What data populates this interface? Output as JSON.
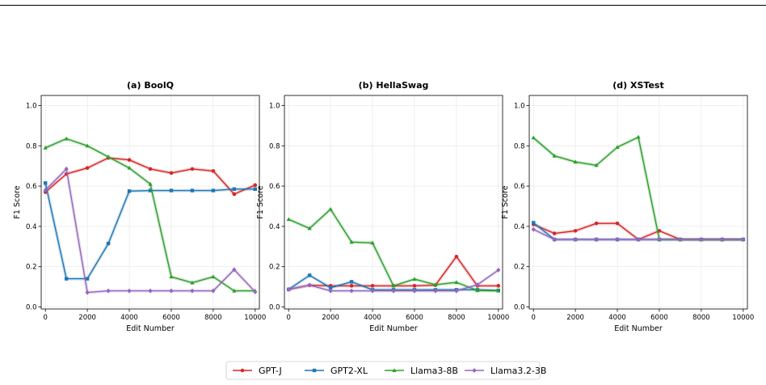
{
  "chart_data": [
    {
      "type": "line",
      "title": "(a) BoolQ",
      "xlabel": "Edit Number",
      "ylabel": "F1 Score",
      "xlim": [
        -200,
        10200
      ],
      "ylim": [
        -0.01,
        1.05
      ],
      "xticks": [
        0,
        2000,
        4000,
        6000,
        8000,
        10000
      ],
      "yticks": [
        0.0,
        0.2,
        0.4,
        0.6,
        0.8,
        1.0
      ],
      "ytick_labels": [
        "0.0",
        "0.2",
        "0.4",
        "0.6",
        "0.8",
        "1.0"
      ],
      "grid": true,
      "x": [
        0,
        1000,
        2000,
        3000,
        4000,
        5000,
        6000,
        7000,
        8000,
        9000,
        10000
      ],
      "series": [
        {
          "name": "GPT-J",
          "values": [
            0.57,
            0.66,
            0.69,
            0.74,
            0.73,
            0.685,
            0.665,
            0.685,
            0.675,
            0.56,
            0.605
          ]
        },
        {
          "name": "GPT2-XL",
          "values": [
            0.615,
            0.14,
            0.14,
            0.315,
            0.575,
            0.578,
            0.578,
            0.578,
            0.578,
            0.585,
            0.585
          ]
        },
        {
          "name": "Llama3-8B",
          "values": [
            0.79,
            0.835,
            0.8,
            0.745,
            0.69,
            0.61,
            0.15,
            0.12,
            0.15,
            0.08,
            0.08
          ]
        },
        {
          "name": "Llama3.2-3B",
          "values": [
            0.58,
            0.685,
            0.072,
            0.08,
            0.08,
            0.08,
            0.08,
            0.08,
            0.08,
            0.185,
            0.075
          ]
        }
      ]
    },
    {
      "type": "line",
      "title": "(b) HellaSwag",
      "xlabel": "Edit Number",
      "ylabel": "F1 Score",
      "xlim": [
        -200,
        10200
      ],
      "ylim": [
        -0.01,
        1.05
      ],
      "xticks": [
        0,
        2000,
        4000,
        6000,
        8000,
        10000
      ],
      "yticks": [
        0.0,
        0.2,
        0.4,
        0.6,
        0.8,
        1.0
      ],
      "ytick_labels": [
        "0.0",
        "0.2",
        "0.4",
        "0.6",
        "0.8",
        "1.0"
      ],
      "grid": true,
      "x": [
        0,
        1000,
        2000,
        3000,
        4000,
        5000,
        6000,
        7000,
        8000,
        9000,
        10000
      ],
      "series": [
        {
          "name": "GPT-J",
          "values": [
            0.087,
            0.108,
            0.105,
            0.105,
            0.105,
            0.105,
            0.105,
            0.108,
            0.25,
            0.105,
            0.105
          ]
        },
        {
          "name": "GPT2-XL",
          "values": [
            0.087,
            0.157,
            0.095,
            0.125,
            0.085,
            0.085,
            0.085,
            0.085,
            0.085,
            0.085,
            0.082
          ]
        },
        {
          "name": "Llama3-8B",
          "values": [
            0.435,
            0.39,
            0.485,
            0.322,
            0.318,
            0.105,
            0.138,
            0.11,
            0.122,
            0.082,
            0.08
          ]
        },
        {
          "name": "Llama3.2-3B",
          "values": [
            0.087,
            0.108,
            0.08,
            0.08,
            0.08,
            0.08,
            0.08,
            0.08,
            0.08,
            0.11,
            0.183
          ]
        }
      ]
    },
    {
      "type": "line",
      "title": "(d) XSTest",
      "xlabel": "Edit Number",
      "ylabel": "F1 Score",
      "xlim": [
        -200,
        10200
      ],
      "ylim": [
        -0.01,
        1.05
      ],
      "xticks": [
        0,
        2000,
        4000,
        6000,
        8000,
        10000
      ],
      "yticks": [
        0.0,
        0.2,
        0.4,
        0.6,
        0.8,
        1.0
      ],
      "ytick_labels": [
        "0.0",
        "0.2",
        "0.4",
        "0.6",
        "0.8",
        "1.0"
      ],
      "grid": true,
      "x": [
        0,
        1000,
        2000,
        3000,
        4000,
        5000,
        6000,
        7000,
        8000,
        9000,
        10000
      ],
      "series": [
        {
          "name": "GPT-J",
          "values": [
            0.41,
            0.365,
            0.378,
            0.415,
            0.415,
            0.335,
            0.378,
            0.335,
            0.335,
            0.335,
            0.335
          ]
        },
        {
          "name": "GPT2-XL",
          "values": [
            0.418,
            0.335,
            0.335,
            0.335,
            0.335,
            0.335,
            0.335,
            0.335,
            0.335,
            0.335,
            0.335
          ]
        },
        {
          "name": "Llama3-8B",
          "values": [
            0.84,
            0.75,
            0.72,
            0.703,
            0.793,
            0.843,
            0.335,
            0.335,
            0.335,
            0.335,
            0.335
          ]
        },
        {
          "name": "Llama3.2-3B",
          "values": [
            0.385,
            0.335,
            0.335,
            0.335,
            0.335,
            0.335,
            0.335,
            0.335,
            0.335,
            0.335,
            0.335
          ]
        }
      ]
    }
  ],
  "legend": {
    "placement": "bottom-center",
    "entries": [
      "GPT-J",
      "GPT2-XL",
      "Llama3-8B",
      "Llama3.2-3B"
    ]
  },
  "series_styles": {
    "GPT-J": {
      "color": "#d62728",
      "marker": "circle"
    },
    "GPT2-XL": {
      "color": "#1f77b4",
      "marker": "square"
    },
    "Llama3-8B": {
      "color": "#2ca02c",
      "marker": "triangle"
    },
    "Llama3.2-3B": {
      "color": "#9467bd",
      "marker": "diamond"
    }
  }
}
